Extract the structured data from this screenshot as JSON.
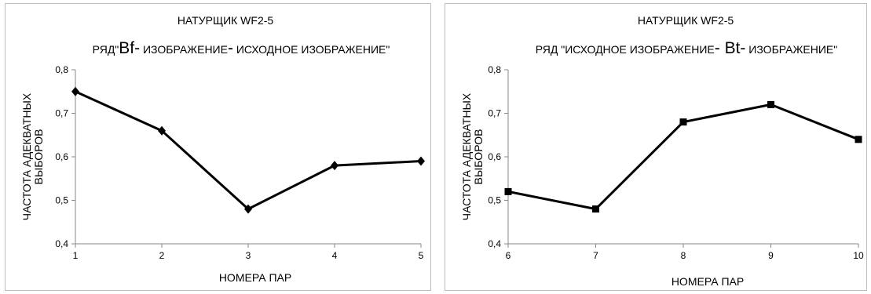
{
  "chart_data": [
    {
      "type": "line",
      "title": "НАТУРЩИК   WF2-5",
      "subtitle_parts": [
        {
          "text": "РЯД\"",
          "size": "small"
        },
        {
          "text": "Bf-",
          "size": "big"
        },
        {
          "text": " ИЗОБРАЖЕНИЕ",
          "size": "small"
        },
        {
          "text": "-",
          "size": "big"
        },
        {
          "text": " ИСХОДНОЕ ИЗОБРАЖЕНИЕ\"",
          "size": "small"
        }
      ],
      "xlabel": "НОМЕРА   ПАР",
      "ylabel_lines": [
        "ЧАСТОТА   АДЕКВАТНЫХ",
        "ВЫБОРОВ"
      ],
      "x": [
        1,
        2,
        3,
        4,
        5
      ],
      "values": [
        0.75,
        0.66,
        0.48,
        0.58,
        0.59
      ],
      "x_tick_labels": [
        "1",
        "2",
        "3",
        "4",
        "5"
      ],
      "y_ticks": [
        0.4,
        0.5,
        0.6,
        0.7,
        0.8
      ],
      "y_tick_labels": [
        "0,4",
        "0,5",
        "0,6",
        "0,7",
        "0,8"
      ],
      "ylim": [
        0.4,
        0.8
      ],
      "marker": "diamond",
      "line_color": "#000000",
      "grid": false,
      "legend": "none"
    },
    {
      "type": "line",
      "title": "НАТУРЩИК   WF2-5",
      "subtitle_parts": [
        {
          "text": "РЯД  \"ИСХОДНОЕ  ИЗОБРАЖЕНИЕ",
          "size": "small"
        },
        {
          "text": "- Bt-",
          "size": "big"
        },
        {
          "text": " ИЗОБРАЖЕНИЕ\"",
          "size": "small"
        }
      ],
      "xlabel": "НОМЕРА   ПАР",
      "ylabel_lines": [
        "ЧАСТОТА   АДЕКВАТНЫХ",
        "ВЫБОРОВ"
      ],
      "x": [
        6,
        7,
        8,
        9,
        10
      ],
      "values": [
        0.52,
        0.48,
        0.68,
        0.72,
        0.64
      ],
      "x_tick_labels": [
        "6",
        "7",
        "8",
        "9",
        "10"
      ],
      "y_ticks": [
        0.4,
        0.5,
        0.6,
        0.7,
        0.8
      ],
      "y_tick_labels": [
        "0,4",
        "0,5",
        "0,6",
        "0,7",
        "0,8"
      ],
      "ylim": [
        0.4,
        0.8
      ],
      "marker": "square",
      "line_color": "#000000",
      "grid": false,
      "legend": "none"
    }
  ]
}
